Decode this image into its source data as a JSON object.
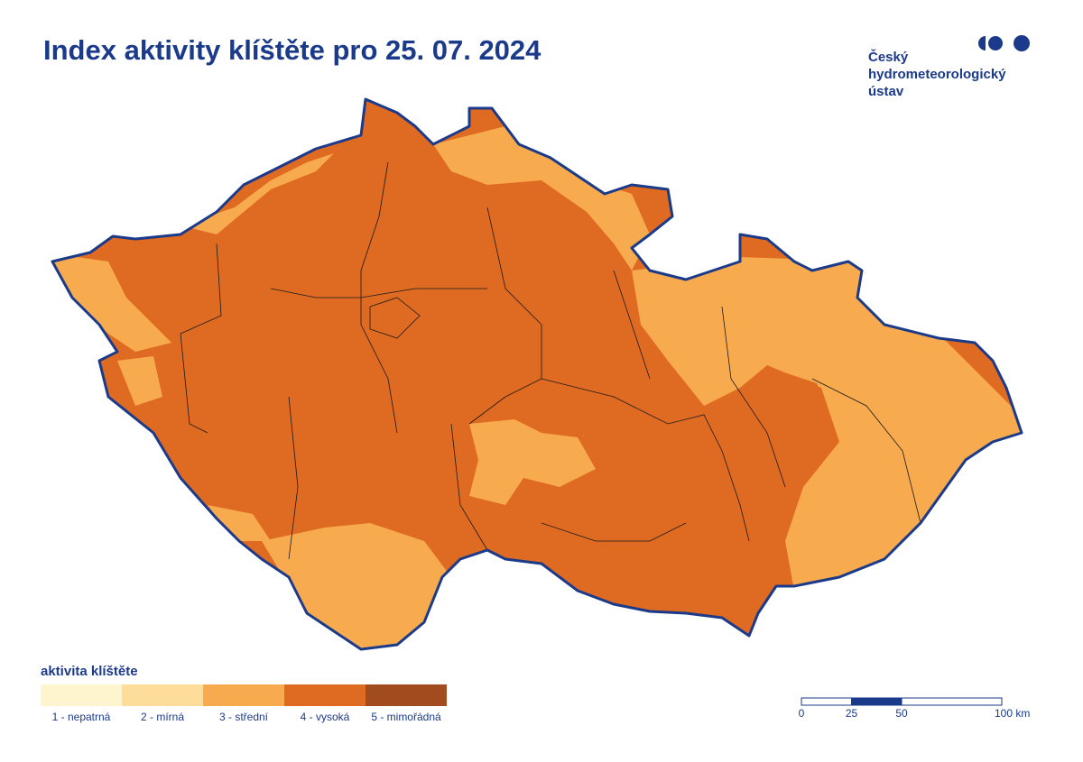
{
  "title": "Index aktivity klíštěte pro 25. 07. 2024",
  "logo": {
    "lines": [
      "Český",
      "hydrometeorologický",
      "ústav"
    ]
  },
  "legend": {
    "title": "aktivita klíštěte",
    "items": [
      {
        "label": "1 - nepatrná",
        "color": "#fef5cf"
      },
      {
        "label": "2 - mírná",
        "color": "#fddd99"
      },
      {
        "label": "3 - střední",
        "color": "#f8aa4f"
      },
      {
        "label": "4 - vysoká",
        "color": "#df6b23"
      },
      {
        "label": "5 - mimořádná",
        "color": "#a24b1f"
      }
    ]
  },
  "scale_bar": {
    "ticks": [
      0,
      25,
      50,
      {
        "value": 100,
        "label": "100 km"
      }
    ]
  }
}
